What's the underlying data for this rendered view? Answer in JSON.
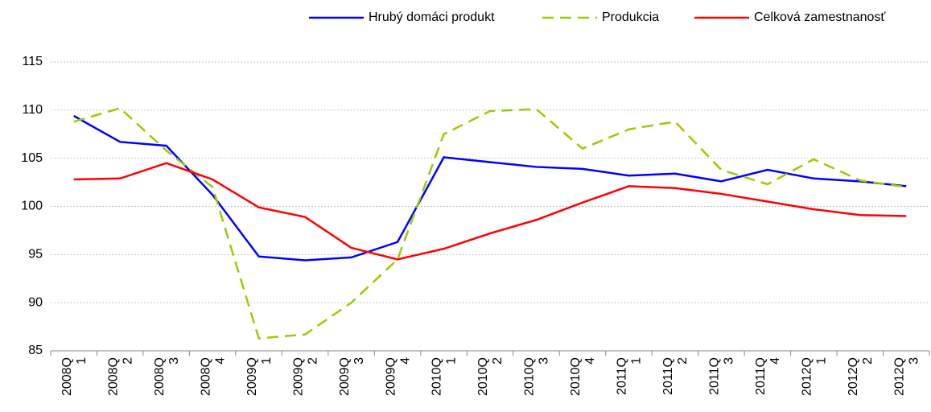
{
  "chart_data": {
    "type": "line",
    "categories": [
      [
        "2008Q",
        "1"
      ],
      [
        "2008Q",
        "2"
      ],
      [
        "2008Q",
        "3"
      ],
      [
        "2008Q",
        "4"
      ],
      [
        "2009Q",
        "1"
      ],
      [
        "2009Q",
        "2"
      ],
      [
        "2009Q",
        "3"
      ],
      [
        "2009Q",
        "4"
      ],
      [
        "2010Q",
        "1"
      ],
      [
        "2010Q",
        "2"
      ],
      [
        "2010Q",
        "3"
      ],
      [
        "2010Q",
        "4"
      ],
      [
        "2011Q",
        "1"
      ],
      [
        "2011Q",
        "2"
      ],
      [
        "2011Q",
        "3"
      ],
      [
        "2011Q",
        "4"
      ],
      [
        "2012Q",
        "1"
      ],
      [
        "2012Q",
        "2"
      ],
      [
        "2012Q",
        "3"
      ]
    ],
    "series": [
      {
        "name": "Hrubý domáci produkt",
        "color": "#0000ff",
        "dash": false,
        "values": [
          109.4,
          106.7,
          106.3,
          101.2,
          94.8,
          94.4,
          94.7,
          96.3,
          105.1,
          104.6,
          104.1,
          103.9,
          103.2,
          103.4,
          102.6,
          103.8,
          102.9,
          102.6,
          102.1
        ]
      },
      {
        "name": "Produkcia",
        "color": "#99cc00",
        "dash": true,
        "values": [
          108.8,
          110.2,
          105.8,
          102.0,
          86.3,
          86.7,
          90.0,
          94.5,
          107.5,
          109.9,
          110.1,
          106.0,
          108.0,
          108.8,
          103.8,
          102.3,
          104.9,
          102.7,
          102.0
        ]
      },
      {
        "name": "Celková zamestnanosť",
        "color": "#ff0000",
        "dash": false,
        "values": [
          102.8,
          102.9,
          104.5,
          102.8,
          99.9,
          98.9,
          95.7,
          94.5,
          95.6,
          97.2,
          98.6,
          100.4,
          102.1,
          101.9,
          101.3,
          100.5,
          99.7,
          99.1,
          99.0
        ]
      }
    ],
    "ylim": [
      85,
      115
    ],
    "yticks": [
      85,
      90,
      95,
      100,
      105,
      110,
      115
    ],
    "grid": true,
    "legend": "top-right"
  }
}
